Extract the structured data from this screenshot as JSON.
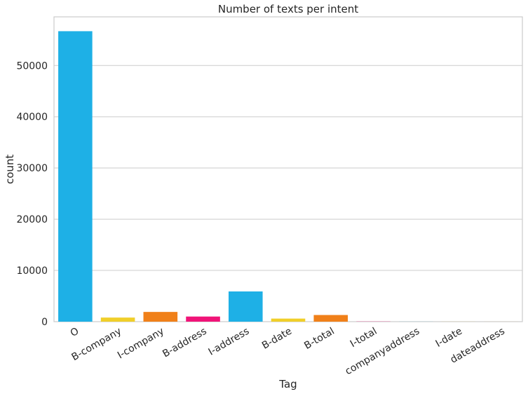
{
  "chart_data": {
    "type": "bar",
    "title": "Number of texts per intent",
    "xlabel": "Tag",
    "ylabel": "count",
    "categories": [
      "O",
      "B-company",
      "I-company",
      "B-address",
      "I-address",
      "B-date",
      "B-total",
      "I-total",
      "companyaddress",
      "I-date",
      "dateaddress"
    ],
    "values": [
      56700,
      800,
      1900,
      1000,
      5900,
      600,
      1300,
      30,
      10,
      10,
      5
    ],
    "colors": [
      "#1eb0e6",
      "#f0cf2a",
      "#f08019",
      "#f01478",
      "#1eb0e6",
      "#f0cf2a",
      "#f08019",
      "#f01478",
      "#1eb0e6",
      "#f0cf2a",
      "#f08019"
    ],
    "ylim": [
      0,
      59500
    ],
    "yticks": [
      0,
      10000,
      20000,
      30000,
      40000,
      50000
    ],
    "grid": true
  }
}
